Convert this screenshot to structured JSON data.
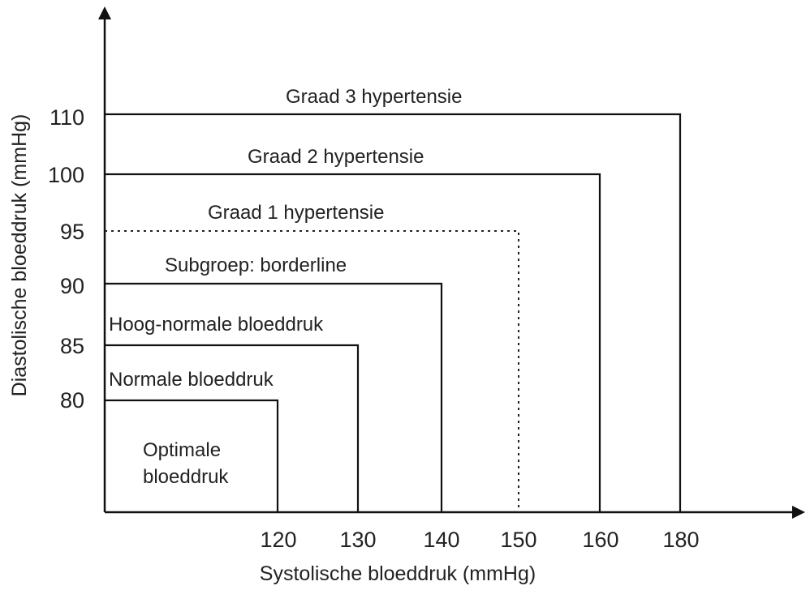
{
  "chart_data": {
    "type": "nested-region-diagram",
    "xlabel": "Systolische bloeddruk (mmHg)",
    "ylabel": "Diastolische bloeddruk (mmHg)",
    "x_ticks": [
      "120",
      "130",
      "140",
      "150",
      "160",
      "180"
    ],
    "y_ticks": [
      "80",
      "85",
      "90",
      "95",
      "100",
      "110"
    ],
    "categories": [
      {
        "name": "Optimale bloeddruk",
        "lines": [
          "Optimale",
          "bloeddruk"
        ],
        "systolic_max": 120,
        "diastolic_max": 80,
        "boundary": "solid"
      },
      {
        "name": "Normale bloeddruk",
        "lines": [
          "Normale bloeddruk"
        ],
        "systolic_max": 130,
        "diastolic_max": 85,
        "boundary": "solid"
      },
      {
        "name": "Hoog-normale bloeddruk",
        "lines": [
          "Hoog-normale bloeddruk"
        ],
        "systolic_max": 140,
        "diastolic_max": 90,
        "boundary": "solid"
      },
      {
        "name": "Subgroep: borderline",
        "lines": [
          "Subgroep: borderline"
        ],
        "systolic_max": 150,
        "diastolic_max": 95,
        "boundary": "dotted"
      },
      {
        "name": "Graad 1 hypertensie",
        "lines": [
          "Graad 1 hypertensie"
        ],
        "systolic_max": 160,
        "diastolic_max": 100,
        "boundary": "solid"
      },
      {
        "name": "Graad 2 hypertensie",
        "lines": [
          "Graad 2 hypertensie"
        ],
        "systolic_max": 180,
        "diastolic_max": 110,
        "boundary": "solid"
      },
      {
        "name": "Graad 3 hypertensie",
        "lines": [
          "Graad 3 hypertensie"
        ]
      }
    ],
    "colors": {
      "line": "#111111",
      "text": "#222222",
      "background": "#ffffff"
    }
  }
}
